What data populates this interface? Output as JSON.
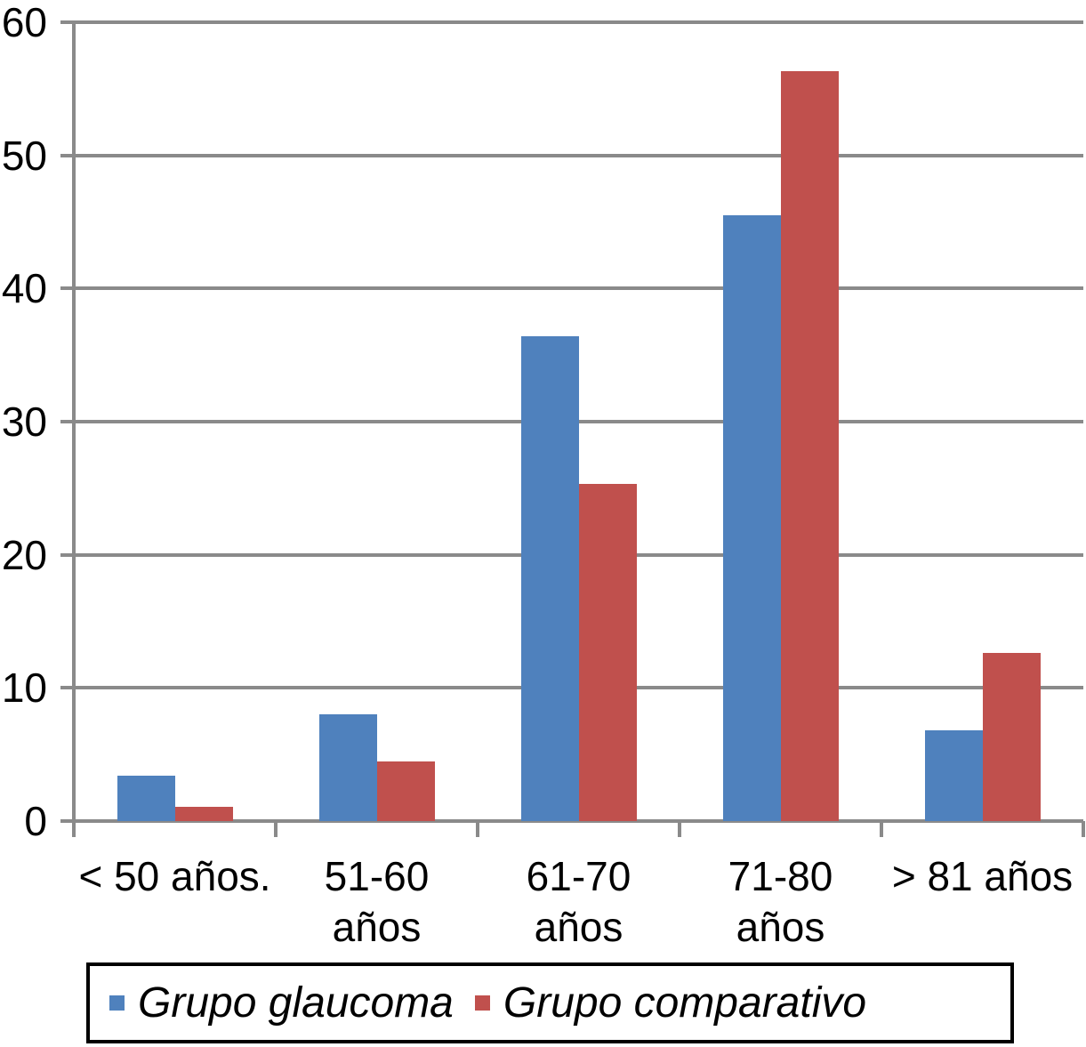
{
  "chart_data": {
    "type": "bar",
    "categories": [
      "< 50 años.",
      "51-60\naños",
      "61-70\naños",
      "71-80\naños",
      "> 81 años"
    ],
    "series": [
      {
        "name": "Grupo glaucoma",
        "color": "#4F81BD",
        "values": [
          3.4,
          8.0,
          36.4,
          45.5,
          6.8
        ]
      },
      {
        "name": "Grupo comparativo",
        "color": "#C0504D",
        "values": [
          1.1,
          4.5,
          25.3,
          56.3,
          12.6
        ]
      }
    ],
    "title": "",
    "xlabel": "",
    "ylabel": "",
    "ylim": [
      0,
      60
    ],
    "yticks": [
      0,
      10,
      20,
      30,
      40,
      50,
      60
    ],
    "grid": "horizontal",
    "legend_position": "bottom",
    "colors": {
      "axis": "#8A8A8A",
      "grid": "#8A8A8A",
      "text": "#000000",
      "legend_border": "#000000",
      "background": "#FFFFFF"
    }
  }
}
